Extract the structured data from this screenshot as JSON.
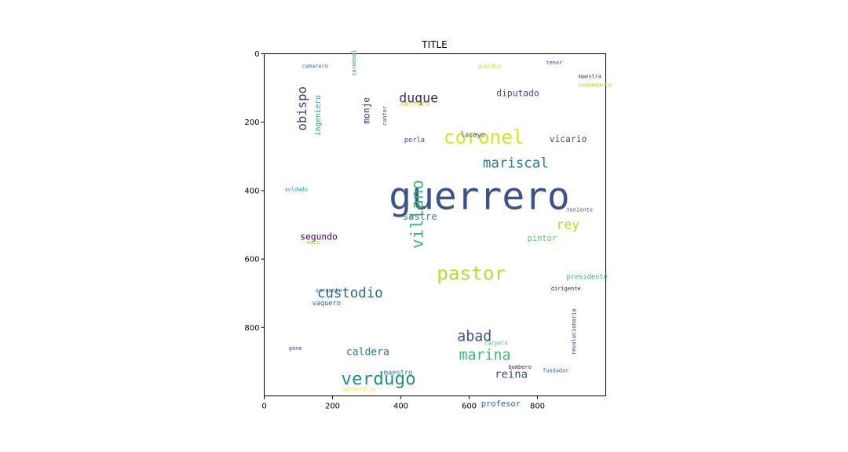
{
  "chart_data": {
    "type": "wordcloud",
    "title": "TITLE",
    "xlabel": "",
    "ylabel": "",
    "xlim": [
      0,
      1000
    ],
    "ylim": [
      1000,
      0
    ],
    "x_ticks": [
      "0",
      "200",
      "400",
      "600",
      "800"
    ],
    "y_ticks": [
      "0",
      "200",
      "400",
      "600",
      "800"
    ],
    "words": [
      {
        "text": "guerrero",
        "x": 365,
        "y": 375,
        "size": 110,
        "color": "#3b528b",
        "rotate": false
      },
      {
        "text": "coronel",
        "x": 525,
        "y": 220,
        "size": 56,
        "color": "#dde318",
        "rotate": false
      },
      {
        "text": "pastor",
        "x": 505,
        "y": 618,
        "size": 56,
        "color": "#b5de2b",
        "rotate": false
      },
      {
        "text": "verdugo",
        "x": 225,
        "y": 930,
        "size": 52,
        "color": "#21918c",
        "rotate": false
      },
      {
        "text": "villano",
        "x": 430,
        "y": 570,
        "size": 48,
        "color": "#35b779",
        "rotate": true
      },
      {
        "text": "custodio",
        "x": 155,
        "y": 685,
        "size": 40,
        "color": "#31688e",
        "rotate": false
      },
      {
        "text": "mariscal",
        "x": 640,
        "y": 305,
        "size": 40,
        "color": "#26828e",
        "rotate": false
      },
      {
        "text": "abad",
        "x": 565,
        "y": 810,
        "size": 42,
        "color": "#3b528b",
        "rotate": false
      },
      {
        "text": "marina",
        "x": 570,
        "y": 865,
        "size": 42,
        "color": "#3fbc73",
        "rotate": false
      },
      {
        "text": "duque",
        "x": 395,
        "y": 115,
        "size": 38,
        "color": "#482677",
        "rotate": false
      },
      {
        "text": "obispo",
        "x": 95,
        "y": 225,
        "size": 36,
        "color": "#46327e",
        "rotate": true
      },
      {
        "text": "rey",
        "x": 855,
        "y": 485,
        "size": 38,
        "color": "#b5de2b",
        "rotate": false
      },
      {
        "text": "reina",
        "x": 675,
        "y": 925,
        "size": 32,
        "color": "#3b528b",
        "rotate": false
      },
      {
        "text": "caldera",
        "x": 240,
        "y": 860,
        "size": 30,
        "color": "#2a788e",
        "rotate": false
      },
      {
        "text": "sastre",
        "x": 405,
        "y": 465,
        "size": 28,
        "color": "#23898e",
        "rotate": false
      },
      {
        "text": "vicario",
        "x": 835,
        "y": 240,
        "size": 26,
        "color": "#414487",
        "rotate": false
      },
      {
        "text": "diputado",
        "x": 680,
        "y": 105,
        "size": 26,
        "color": "#404688",
        "rotate": false
      },
      {
        "text": "monje",
        "x": 290,
        "y": 205,
        "size": 26,
        "color": "#482878",
        "rotate": true
      },
      {
        "text": "segundo",
        "x": 105,
        "y": 525,
        "size": 26,
        "color": "#440154",
        "rotate": false
      },
      {
        "text": "pintor",
        "x": 770,
        "y": 530,
        "size": 24,
        "color": "#5ec962",
        "rotate": false
      },
      {
        "text": "profesor",
        "x": 635,
        "y": 1015,
        "size": 24,
        "color": "#2c728e",
        "rotate": false
      },
      {
        "text": "ingeniero",
        "x": 150,
        "y": 240,
        "size": 22,
        "color": "#20a486",
        "rotate": true
      },
      {
        "text": "presidente",
        "x": 885,
        "y": 645,
        "size": 20,
        "color": "#2fb47c",
        "rotate": false
      },
      {
        "text": "vaquero",
        "x": 140,
        "y": 722,
        "size": 20,
        "color": "#33638d",
        "rotate": false
      },
      {
        "text": "herrero",
        "x": 400,
        "y": 140,
        "size": 20,
        "color": "#c2df23",
        "rotate": false
      },
      {
        "text": "lacayo",
        "x": 575,
        "y": 230,
        "size": 20,
        "color": "#3b528b",
        "rotate": false
      },
      {
        "text": "perla",
        "x": 410,
        "y": 245,
        "size": 20,
        "color": "#39568c",
        "rotate": false
      },
      {
        "text": "maestro",
        "x": 350,
        "y": 925,
        "size": 20,
        "color": "#2a788e",
        "rotate": false
      },
      {
        "text": "cantor",
        "x": 347,
        "y": 210,
        "size": 16,
        "color": "#404688",
        "rotate": true
      },
      {
        "text": "cardenal",
        "x": 257,
        "y": 65,
        "size": 16,
        "color": "#21918c",
        "rotate": true
      },
      {
        "text": "revolucionaria",
        "x": 900,
        "y": 880,
        "size": 16,
        "color": "#482677",
        "rotate": true
      },
      {
        "text": "camarero",
        "x": 110,
        "y": 30,
        "size": 16,
        "color": "#2c728e",
        "rotate": false
      },
      {
        "text": "guardia",
        "x": 625,
        "y": 30,
        "size": 16,
        "color": "#c8e020",
        "rotate": false
      },
      {
        "text": "tenor",
        "x": 825,
        "y": 20,
        "size": 16,
        "color": "#3e4989",
        "rotate": false
      },
      {
        "text": "maestra",
        "x": 920,
        "y": 60,
        "size": 16,
        "color": "#472c7a",
        "rotate": false
      },
      {
        "text": "comandante",
        "x": 920,
        "y": 85,
        "size": 16,
        "color": "#addc30",
        "rotate": false
      },
      {
        "text": "soldado",
        "x": 60,
        "y": 390,
        "size": 16,
        "color": "#1fa188",
        "rotate": false
      },
      {
        "text": "teniente",
        "x": 885,
        "y": 450,
        "size": 16,
        "color": "#2d708e",
        "rotate": false
      },
      {
        "text": "mozo",
        "x": 125,
        "y": 545,
        "size": 16,
        "color": "#9fda3a",
        "rotate": false
      },
      {
        "text": "sargento",
        "x": 150,
        "y": 685,
        "size": 16,
        "color": "#2e6e8e",
        "rotate": false
      },
      {
        "text": "dirigente",
        "x": 840,
        "y": 680,
        "size": 16,
        "color": "#471063",
        "rotate": false
      },
      {
        "text": "gene",
        "x": 72,
        "y": 855,
        "size": 16,
        "color": "#3e4989",
        "rotate": false
      },
      {
        "text": "carpeta",
        "x": 645,
        "y": 840,
        "size": 16,
        "color": "#44bf70",
        "rotate": false
      },
      {
        "text": "bombero",
        "x": 715,
        "y": 910,
        "size": 16,
        "color": "#471164",
        "rotate": false
      },
      {
        "text": "fundador",
        "x": 815,
        "y": 920,
        "size": 16,
        "color": "#2f6b8e",
        "rotate": false
      },
      {
        "text": "secretario",
        "x": 230,
        "y": 975,
        "size": 16,
        "color": "#fde725",
        "rotate": false
      }
    ]
  }
}
